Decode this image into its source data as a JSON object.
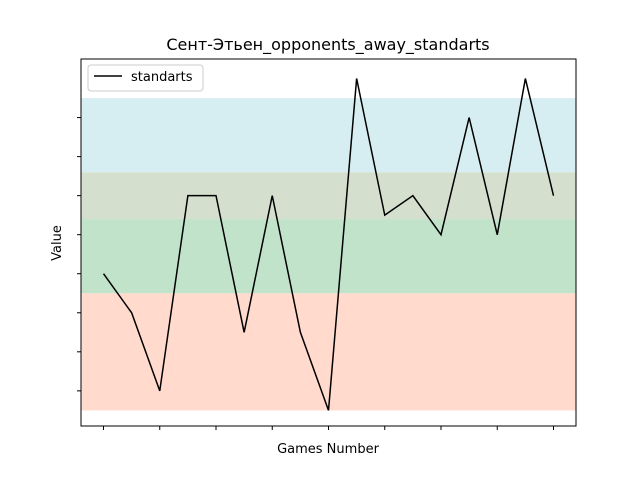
{
  "chart_data": {
    "type": "line",
    "title": "Сент-Этьен_opponents_away_standarts",
    "xlabel": "Games Number",
    "ylabel": "Value",
    "x": [
      1,
      2,
      3,
      4,
      5,
      6,
      7,
      8,
      9,
      10,
      11,
      12,
      13,
      14,
      15,
      16,
      17
    ],
    "series": [
      {
        "name": "standarts",
        "color": "#000000",
        "values": [
          4.0,
          3.0,
          1.0,
          6.0,
          6.0,
          2.5,
          6.0,
          2.5,
          0.5,
          9.0,
          5.5,
          6.0,
          5.0,
          8.0,
          5.0,
          9.0,
          6.0
        ]
      }
    ],
    "bands": [
      {
        "from": 0.5,
        "to": 3.5,
        "color": "#ffdacd"
      },
      {
        "from": 3.5,
        "to": 5.4,
        "color": "#c0e3ca"
      },
      {
        "from": 5.4,
        "to": 6.6,
        "color": "#d4e0cd"
      },
      {
        "from": 6.6,
        "to": 8.5,
        "color": "#d6eef1"
      }
    ],
    "xlim": [
      0.2,
      17.8
    ],
    "ylim": [
      0.1,
      9.5
    ],
    "x_ticks": [
      1,
      3,
      5,
      7,
      9,
      11,
      13,
      15,
      17
    ],
    "y_ticks": [
      1,
      2,
      3,
      4,
      5,
      6,
      7,
      8
    ],
    "tick_labels_visible": false,
    "grid": false,
    "legend": "top-left"
  }
}
